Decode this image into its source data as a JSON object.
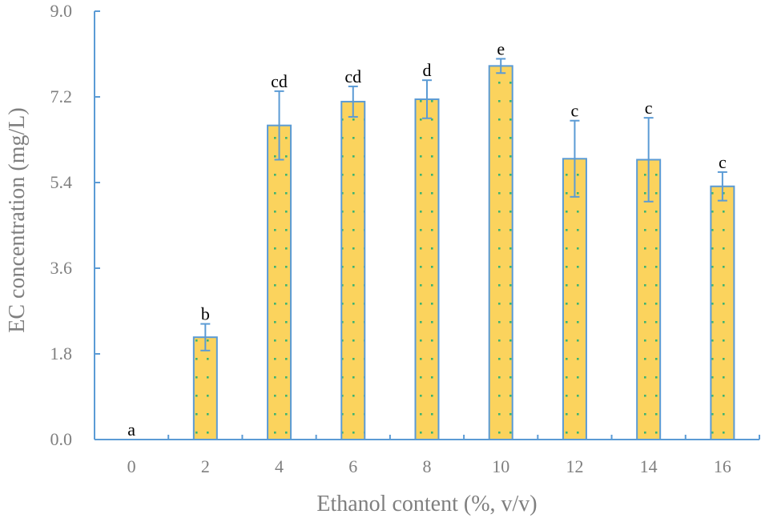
{
  "chart_data": {
    "type": "bar",
    "xlabel": "Ethanol content (%, v/v)",
    "ylabel": "EC concentration (mg/L)",
    "ylim": [
      0,
      9
    ],
    "yticks": [
      "0.0",
      "1.8",
      "3.6",
      "5.4",
      "7.2",
      "9.0"
    ],
    "categories": [
      "0",
      "2",
      "4",
      "6",
      "8",
      "10",
      "12",
      "14",
      "16"
    ],
    "values": [
      0.0,
      2.15,
      6.6,
      7.1,
      7.15,
      7.85,
      5.9,
      5.88,
      5.32
    ],
    "errors": [
      0.0,
      0.28,
      0.72,
      0.32,
      0.4,
      0.15,
      0.8,
      0.88,
      0.3
    ],
    "significance": [
      "a",
      "b",
      "cd",
      "cd",
      "d",
      "e",
      "c",
      "c",
      "c"
    ],
    "grid": false,
    "colors": {
      "bar_fill": "#FBD35D",
      "bar_stroke": "#5B9BD5",
      "bar_dots": "#3CB371",
      "axis": "#5B9BD5",
      "error_bar": "#5B9BD5",
      "text": "#7F7F7F"
    }
  }
}
